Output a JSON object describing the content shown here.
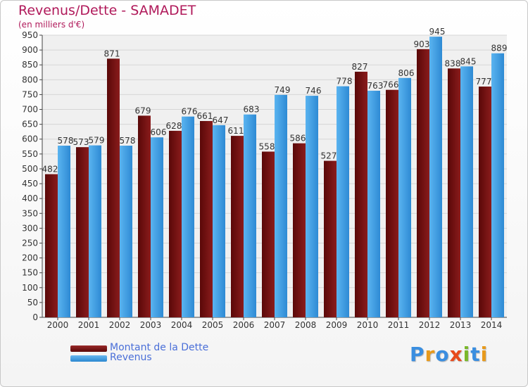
{
  "title": "Revenus/Dette - SAMADET",
  "subtitle": "(en milliers d'€)",
  "colors": {
    "dette": "#7a1212",
    "revenus": "#3a9be0",
    "title": "#b0195a",
    "legend_text": "#4a6fd8"
  },
  "logo": {
    "text": "Proxiti",
    "letters": [
      "P",
      "r",
      "o",
      "x",
      "i",
      "t",
      "i"
    ],
    "letter_colors": [
      "#3a8ee0",
      "#e89a1c",
      "#3a8ee0",
      "#e84a1c",
      "#7ab82a",
      "#3a8ee0",
      "#e89a1c"
    ]
  },
  "chart_data": {
    "type": "bar",
    "title": "Revenus/Dette - SAMADET",
    "subtitle": "(en milliers d'€)",
    "categories": [
      "2000",
      "2001",
      "2002",
      "2003",
      "2004",
      "2005",
      "2006",
      "2007",
      "2008",
      "2009",
      "2010",
      "2011",
      "2012",
      "2013",
      "2014"
    ],
    "series": [
      {
        "name": "Montant de la Dette",
        "color": "#7a1212",
        "values": [
          482,
          573,
          871,
          679,
          628,
          661,
          611,
          558,
          586,
          527,
          827,
          766,
          903,
          838,
          777
        ],
        "labels": [
          "482",
          "573",
          "871",
          "679",
          "628",
          "661",
          "611",
          "558",
          "586",
          "527",
          "827",
          "766",
          "903",
          "838",
          "777"
        ]
      },
      {
        "name": "Revenus",
        "color": "#3a9be0",
        "values": [
          578,
          579,
          578,
          606,
          676,
          647,
          683,
          749,
          746,
          778,
          763,
          806,
          945,
          845,
          889
        ],
        "labels": [
          "578",
          "579",
          "578",
          "606",
          "676",
          "647",
          "683",
          "749",
          "746",
          "778",
          "763",
          "806",
          "945",
          "845",
          "889"
        ]
      }
    ],
    "ylim": [
      0,
      950
    ],
    "yticks": [
      0,
      50,
      100,
      150,
      200,
      250,
      300,
      350,
      400,
      450,
      500,
      550,
      600,
      650,
      700,
      750,
      800,
      850,
      900,
      950
    ],
    "ytick_labels": [
      "0",
      "50",
      "100",
      "150",
      "200",
      "250",
      "300",
      "350",
      "400",
      "450",
      "500",
      "550",
      "600",
      "650",
      "700",
      "750",
      "800",
      "850",
      "900",
      "950"
    ],
    "grid": true,
    "legend_position": "bottom-left"
  }
}
